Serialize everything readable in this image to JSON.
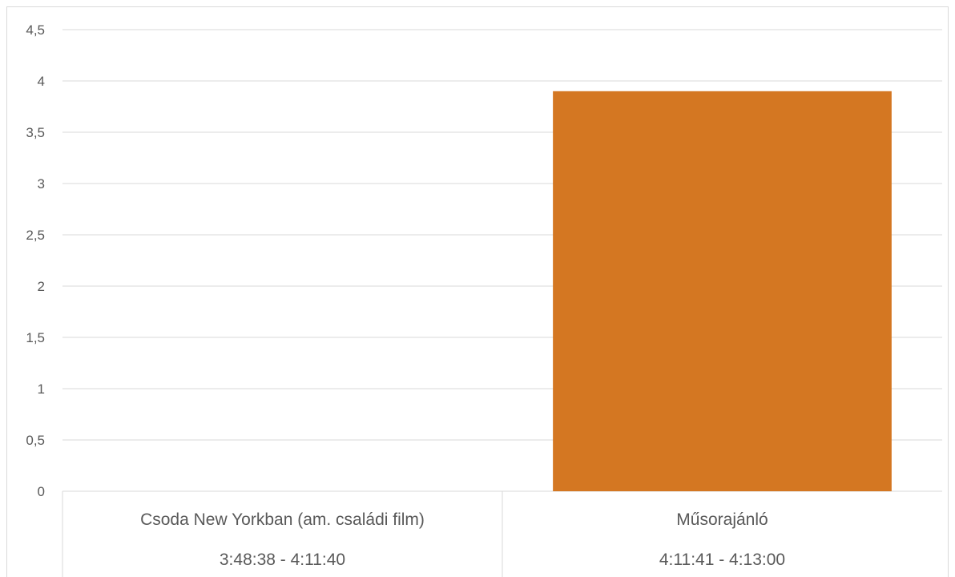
{
  "chart_data": {
    "type": "bar",
    "categories": [
      {
        "name": "Csoda New Yorkban (am. családi film)",
        "time": "3:48:38 - 4:11:40"
      },
      {
        "name": "Műsorajánló",
        "time": "4:11:41 - 4:13:00"
      }
    ],
    "values": [
      0,
      3.9
    ],
    "ylim": [
      0,
      4.5
    ],
    "yticks": [
      "0",
      "0,5",
      "1",
      "1,5",
      "2",
      "2,5",
      "3",
      "3,5",
      "4",
      "4,5"
    ],
    "grid": true,
    "bar_color": "#D47722",
    "grid_color": "#d9d9d9",
    "label_color": "#595959"
  }
}
